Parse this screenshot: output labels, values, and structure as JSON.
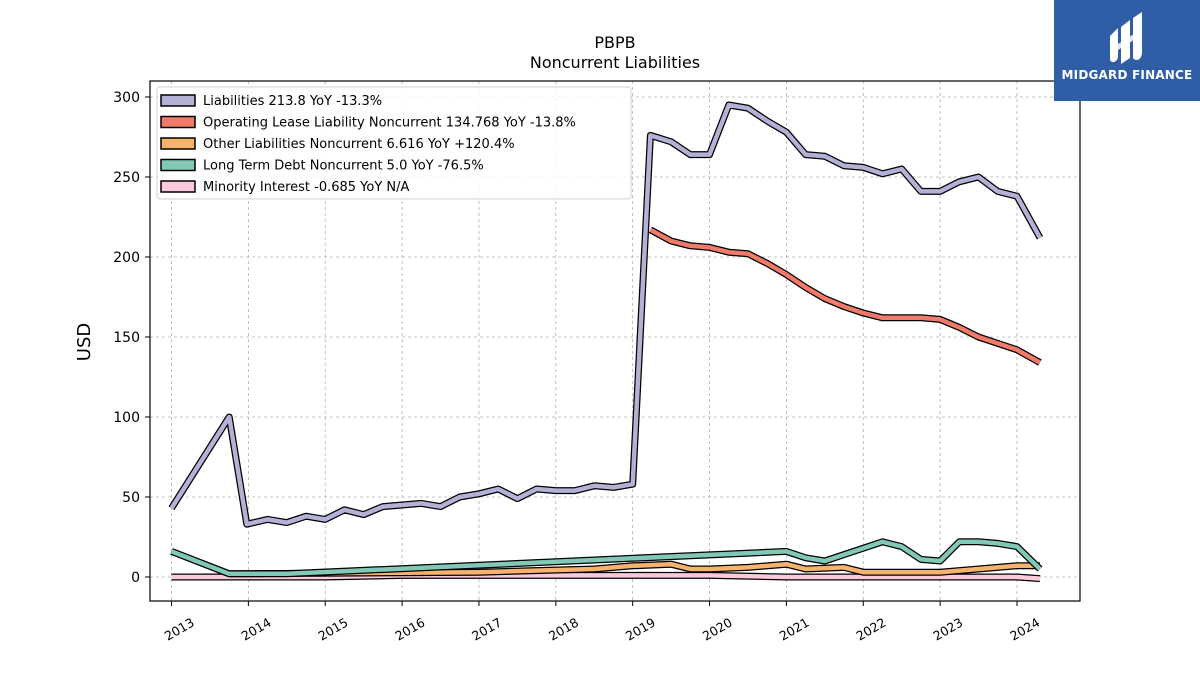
{
  "chart_data": {
    "type": "line",
    "title": "PBPB",
    "subtitle": "Noncurrent  Liabilities",
    "ylabel": "USD",
    "xlabel": "",
    "xlim": [
      2012.72,
      2024.82
    ],
    "ylim": [
      -15,
      310
    ],
    "yticks": [
      0,
      50,
      100,
      150,
      200,
      250,
      300
    ],
    "xticks": [
      2013,
      2014,
      2015,
      2016,
      2017,
      2018,
      2019,
      2020,
      2021,
      2022,
      2023,
      2024
    ],
    "grid": true,
    "legend_position": "top-left",
    "series": [
      {
        "name": "Liabilities",
        "legend": "Liabilities  213.8 YoY -13.3%",
        "color": "#b3b1d6",
        "points": [
          [
            2013.0,
            43
          ],
          [
            2013.75,
            100
          ],
          [
            2013.98,
            33
          ],
          [
            2014.25,
            36
          ],
          [
            2014.5,
            34
          ],
          [
            2014.75,
            38
          ],
          [
            2015.0,
            36
          ],
          [
            2015.25,
            42
          ],
          [
            2015.5,
            39
          ],
          [
            2015.75,
            44
          ],
          [
            2016.0,
            45
          ],
          [
            2016.25,
            46
          ],
          [
            2016.5,
            44
          ],
          [
            2016.75,
            50
          ],
          [
            2017.0,
            52
          ],
          [
            2017.25,
            55
          ],
          [
            2017.5,
            49
          ],
          [
            2017.75,
            55
          ],
          [
            2018.0,
            54
          ],
          [
            2018.25,
            54
          ],
          [
            2018.5,
            57
          ],
          [
            2018.75,
            56
          ],
          [
            2019.0,
            58
          ],
          [
            2019.23,
            276
          ],
          [
            2019.5,
            272
          ],
          [
            2019.75,
            264
          ],
          [
            2020.0,
            264
          ],
          [
            2020.25,
            295
          ],
          [
            2020.5,
            293
          ],
          [
            2020.75,
            285
          ],
          [
            2021.0,
            278
          ],
          [
            2021.25,
            264
          ],
          [
            2021.5,
            263
          ],
          [
            2021.75,
            257
          ],
          [
            2022.0,
            256
          ],
          [
            2022.25,
            252
          ],
          [
            2022.5,
            255
          ],
          [
            2022.75,
            241
          ],
          [
            2023.0,
            241
          ],
          [
            2023.25,
            247
          ],
          [
            2023.5,
            250
          ],
          [
            2023.75,
            241
          ],
          [
            2024.0,
            238
          ],
          [
            2024.3,
            212
          ]
        ]
      },
      {
        "name": "Operating Lease Liability Noncurrent",
        "legend": "Operating Lease Liability Noncurrent  134.768 YoY -13.8%",
        "color": "#f07b6a",
        "points": [
          [
            2019.23,
            217
          ],
          [
            2019.5,
            210
          ],
          [
            2019.75,
            207
          ],
          [
            2020.0,
            206
          ],
          [
            2020.25,
            203
          ],
          [
            2020.5,
            202
          ],
          [
            2020.75,
            196
          ],
          [
            2021.0,
            189
          ],
          [
            2021.25,
            181
          ],
          [
            2021.5,
            174
          ],
          [
            2021.75,
            169
          ],
          [
            2022.0,
            165
          ],
          [
            2022.25,
            162
          ],
          [
            2022.5,
            162
          ],
          [
            2022.75,
            162
          ],
          [
            2023.0,
            161
          ],
          [
            2023.25,
            156
          ],
          [
            2023.5,
            150
          ],
          [
            2023.75,
            146
          ],
          [
            2024.0,
            142
          ],
          [
            2024.3,
            134
          ]
        ]
      },
      {
        "name": "Other Liabilities Noncurrent",
        "legend": "Other Liabilities Noncurrent  6.616 YoY +120.4%",
        "color": "#f7b26b",
        "points": [
          [
            2013.75,
            2
          ],
          [
            2017.0,
            3
          ],
          [
            2018.5,
            5
          ],
          [
            2019.0,
            7
          ],
          [
            2019.5,
            8
          ],
          [
            2019.75,
            5
          ],
          [
            2020.0,
            5
          ],
          [
            2020.5,
            6
          ],
          [
            2021.0,
            8
          ],
          [
            2021.25,
            5
          ],
          [
            2021.75,
            6
          ],
          [
            2022.0,
            3
          ],
          [
            2022.25,
            3
          ],
          [
            2022.5,
            3
          ],
          [
            2022.75,
            3
          ],
          [
            2023.0,
            3
          ],
          [
            2023.25,
            4
          ],
          [
            2023.5,
            5
          ],
          [
            2023.75,
            6
          ],
          [
            2024.0,
            7
          ],
          [
            2024.3,
            7
          ]
        ]
      },
      {
        "name": "Long Term Debt Noncurrent",
        "legend": "Long Term Debt Noncurrent  5.0 YoY -76.5%",
        "color": "#82c8b6",
        "points": [
          [
            2013.0,
            16
          ],
          [
            2013.75,
            2
          ],
          [
            2014.5,
            2
          ],
          [
            2021.0,
            16
          ],
          [
            2021.25,
            12
          ],
          [
            2021.5,
            10
          ],
          [
            2021.75,
            14
          ],
          [
            2022.0,
            18
          ],
          [
            2022.25,
            22
          ],
          [
            2022.5,
            19
          ],
          [
            2022.75,
            11
          ],
          [
            2023.0,
            10
          ],
          [
            2023.25,
            22
          ],
          [
            2023.5,
            22
          ],
          [
            2023.75,
            21
          ],
          [
            2024.0,
            19
          ],
          [
            2024.3,
            5
          ]
        ]
      },
      {
        "name": "Minority Interest",
        "legend": "Minority Interest  -0.685 YoY N/A",
        "color": "#fbc9dd",
        "points": [
          [
            2013.0,
            0
          ],
          [
            2015.0,
            0
          ],
          [
            2016.0,
            1
          ],
          [
            2017.0,
            1
          ],
          [
            2018.0,
            1
          ],
          [
            2019.0,
            1
          ],
          [
            2020.0,
            1
          ],
          [
            2021.0,
            0
          ],
          [
            2022.0,
            0
          ],
          [
            2023.0,
            0
          ],
          [
            2024.0,
            0
          ],
          [
            2024.3,
            -1
          ]
        ]
      }
    ]
  },
  "logo": {
    "text": "MIDGARD FINANCE",
    "background": "#2f5ea7"
  }
}
